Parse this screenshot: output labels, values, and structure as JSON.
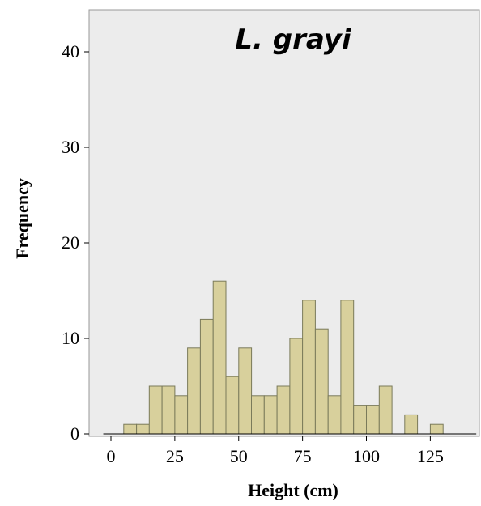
{
  "chart_data": {
    "type": "bar",
    "title": "L. grayi",
    "xlabel": "Height (cm)",
    "ylabel": "Frequency",
    "xlim": [
      -7,
      147
    ],
    "ylim": [
      0,
      45
    ],
    "x_ticks": [
      0,
      25,
      50,
      75,
      100,
      125
    ],
    "y_ticks": [
      0,
      10,
      20,
      30,
      40
    ],
    "bin_width": 5,
    "bins": [
      {
        "start": 5,
        "end": 10,
        "count": 1
      },
      {
        "start": 10,
        "end": 15,
        "count": 1
      },
      {
        "start": 15,
        "end": 20,
        "count": 5
      },
      {
        "start": 20,
        "end": 25,
        "count": 5
      },
      {
        "start": 25,
        "end": 30,
        "count": 4
      },
      {
        "start": 30,
        "end": 35,
        "count": 9
      },
      {
        "start": 35,
        "end": 40,
        "count": 12
      },
      {
        "start": 40,
        "end": 45,
        "count": 16
      },
      {
        "start": 45,
        "end": 50,
        "count": 6
      },
      {
        "start": 50,
        "end": 55,
        "count": 9
      },
      {
        "start": 55,
        "end": 60,
        "count": 4
      },
      {
        "start": 60,
        "end": 65,
        "count": 4
      },
      {
        "start": 65,
        "end": 70,
        "count": 5
      },
      {
        "start": 70,
        "end": 75,
        "count": 10
      },
      {
        "start": 75,
        "end": 80,
        "count": 14
      },
      {
        "start": 80,
        "end": 85,
        "count": 11
      },
      {
        "start": 85,
        "end": 90,
        "count": 4
      },
      {
        "start": 90,
        "end": 95,
        "count": 14
      },
      {
        "start": 95,
        "end": 100,
        "count": 3
      },
      {
        "start": 100,
        "end": 105,
        "count": 3
      },
      {
        "start": 105,
        "end": 110,
        "count": 5
      },
      {
        "start": 115,
        "end": 120,
        "count": 2
      },
      {
        "start": 125,
        "end": 130,
        "count": 1
      }
    ],
    "grid": false,
    "colors": {
      "plot_background": "#ececec",
      "bar_fill": "#d8d09c",
      "bar_edge": "#7a7a5a",
      "frame": "#999999"
    }
  }
}
